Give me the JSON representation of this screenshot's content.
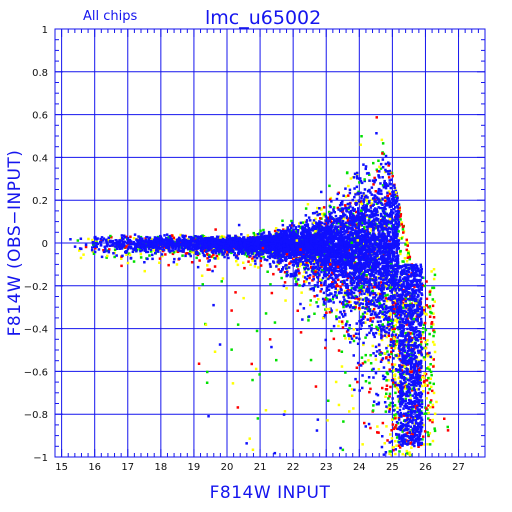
{
  "chart_data": {
    "type": "scatter",
    "title": "lmc_u65002",
    "subtitle": "All chips",
    "xlabel": "F814W INPUT",
    "ylabel": "F814W (OBS−INPUT)",
    "xlim": [
      14.8,
      27.8
    ],
    "ylim": [
      -1,
      1
    ],
    "x_ticks": [
      15,
      16,
      17,
      18,
      19,
      20,
      21,
      22,
      23,
      24,
      25,
      26,
      27
    ],
    "y_ticks": [
      1,
      0.8,
      0.6,
      0.4,
      0.2,
      0,
      -0.2,
      -0.4,
      -0.6,
      -0.8,
      -1
    ],
    "y_tick_labels": [
      "1",
      "0.8",
      "0.6",
      "0.4",
      "0.2",
      "0",
      "−0.2",
      "−0.4",
      "−0.6",
      "−0.8",
      "−1"
    ],
    "grid": true,
    "series": [
      {
        "name": "chip-blue",
        "color": "#1010ff"
      },
      {
        "name": "chip-green",
        "color": "#00e000"
      },
      {
        "name": "chip-red",
        "color": "#ff0000"
      },
      {
        "name": "chip-yellow",
        "color": "#ffff00"
      }
    ],
    "distribution": {
      "core_width_bright": 0.015,
      "core_width_faint": 0.2,
      "upper_edge_peak_x": 24.6,
      "upper_edge_peak_y": 0.6,
      "faint_cutoff_x": 26.4,
      "tail_min_y": -1
    }
  }
}
